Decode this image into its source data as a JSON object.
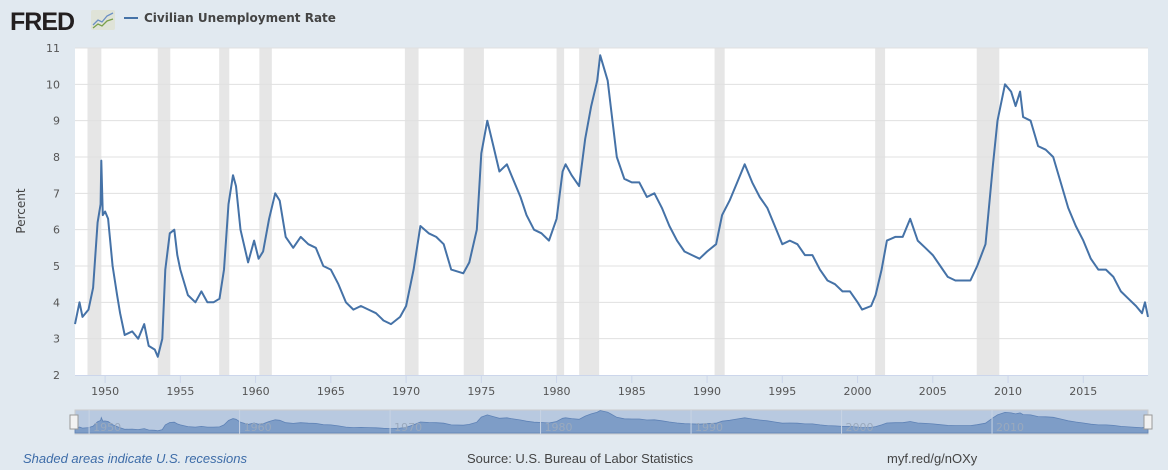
{
  "header": {
    "logo": "FRED",
    "series_name": "Civilian Unemployment Rate",
    "series_color": "#4572a7"
  },
  "footer": {
    "recession_note": "Shaded areas indicate U.S. recessions",
    "source": "Source: U.S. Bureau of Labor Statistics",
    "short_link": "myf.red/g/nOXy"
  },
  "chart_data": {
    "type": "line",
    "title": "",
    "xlabel": "",
    "ylabel": "Percent",
    "xlim": [
      1948.0,
      2019.3
    ],
    "ylim": [
      2,
      11
    ],
    "y_ticks": [
      2,
      3,
      4,
      5,
      6,
      7,
      8,
      9,
      10,
      11
    ],
    "x_ticks": [
      1950,
      1955,
      1960,
      1965,
      1970,
      1975,
      1980,
      1985,
      1990,
      1995,
      2000,
      2005,
      2010,
      2015
    ],
    "navigator_ticks": [
      1950,
      1960,
      1970,
      1980,
      1990,
      2000,
      2010
    ],
    "grid": true,
    "legend": "top-left",
    "line_color": "#4572a7",
    "recession_color": "#e6e6e6",
    "recessions": [
      [
        1948.83,
        1949.75
      ],
      [
        1953.5,
        1954.33
      ],
      [
        1957.58,
        1958.25
      ],
      [
        1960.25,
        1961.08
      ],
      [
        1969.92,
        1970.83
      ],
      [
        1973.83,
        1975.17
      ],
      [
        1980.0,
        1980.5
      ],
      [
        1981.5,
        1982.83
      ],
      [
        1990.5,
        1991.17
      ],
      [
        2001.17,
        2001.83
      ],
      [
        2007.92,
        2009.42
      ]
    ],
    "series": [
      {
        "name": "Civilian Unemployment Rate",
        "points": [
          [
            1948.0,
            3.4
          ],
          [
            1948.3,
            4.0
          ],
          [
            1948.5,
            3.6
          ],
          [
            1948.9,
            3.8
          ],
          [
            1949.2,
            4.4
          ],
          [
            1949.5,
            6.2
          ],
          [
            1949.7,
            6.7
          ],
          [
            1949.75,
            7.9
          ],
          [
            1949.85,
            6.4
          ],
          [
            1950.0,
            6.5
          ],
          [
            1950.2,
            6.3
          ],
          [
            1950.5,
            5.0
          ],
          [
            1950.8,
            4.2
          ],
          [
            1951.0,
            3.7
          ],
          [
            1951.3,
            3.1
          ],
          [
            1951.8,
            3.2
          ],
          [
            1952.2,
            3.0
          ],
          [
            1952.6,
            3.4
          ],
          [
            1952.9,
            2.8
          ],
          [
            1953.3,
            2.7
          ],
          [
            1953.5,
            2.5
          ],
          [
            1953.8,
            3.0
          ],
          [
            1954.0,
            4.9
          ],
          [
            1954.3,
            5.9
          ],
          [
            1954.6,
            6.0
          ],
          [
            1954.8,
            5.3
          ],
          [
            1955.0,
            4.9
          ],
          [
            1955.5,
            4.2
          ],
          [
            1956.0,
            4.0
          ],
          [
            1956.4,
            4.3
          ],
          [
            1956.8,
            4.0
          ],
          [
            1957.2,
            4.0
          ],
          [
            1957.6,
            4.1
          ],
          [
            1957.9,
            4.9
          ],
          [
            1958.2,
            6.7
          ],
          [
            1958.5,
            7.5
          ],
          [
            1958.7,
            7.2
          ],
          [
            1959.0,
            6.0
          ],
          [
            1959.5,
            5.1
          ],
          [
            1959.9,
            5.7
          ],
          [
            1960.2,
            5.2
          ],
          [
            1960.5,
            5.4
          ],
          [
            1960.9,
            6.3
          ],
          [
            1961.3,
            7.0
          ],
          [
            1961.6,
            6.8
          ],
          [
            1962.0,
            5.8
          ],
          [
            1962.5,
            5.5
          ],
          [
            1963.0,
            5.8
          ],
          [
            1963.5,
            5.6
          ],
          [
            1964.0,
            5.5
          ],
          [
            1964.5,
            5.0
          ],
          [
            1965.0,
            4.9
          ],
          [
            1965.5,
            4.5
          ],
          [
            1966.0,
            4.0
          ],
          [
            1966.5,
            3.8
          ],
          [
            1967.0,
            3.9
          ],
          [
            1967.5,
            3.8
          ],
          [
            1968.0,
            3.7
          ],
          [
            1968.5,
            3.5
          ],
          [
            1969.0,
            3.4
          ],
          [
            1969.6,
            3.6
          ],
          [
            1970.0,
            3.9
          ],
          [
            1970.5,
            4.9
          ],
          [
            1970.95,
            6.1
          ],
          [
            1971.5,
            5.9
          ],
          [
            1972.0,
            5.8
          ],
          [
            1972.5,
            5.6
          ],
          [
            1973.0,
            4.9
          ],
          [
            1973.8,
            4.8
          ],
          [
            1974.2,
            5.1
          ],
          [
            1974.7,
            6.0
          ],
          [
            1975.0,
            8.1
          ],
          [
            1975.4,
            9.0
          ],
          [
            1975.8,
            8.3
          ],
          [
            1976.2,
            7.6
          ],
          [
            1976.7,
            7.8
          ],
          [
            1977.0,
            7.5
          ],
          [
            1977.6,
            6.9
          ],
          [
            1978.0,
            6.4
          ],
          [
            1978.5,
            6.0
          ],
          [
            1979.0,
            5.9
          ],
          [
            1979.5,
            5.7
          ],
          [
            1980.0,
            6.3
          ],
          [
            1980.4,
            7.6
          ],
          [
            1980.6,
            7.8
          ],
          [
            1981.0,
            7.5
          ],
          [
            1981.5,
            7.2
          ],
          [
            1981.9,
            8.5
          ],
          [
            1982.3,
            9.4
          ],
          [
            1982.7,
            10.1
          ],
          [
            1982.9,
            10.8
          ],
          [
            1983.4,
            10.1
          ],
          [
            1983.6,
            9.4
          ],
          [
            1984.0,
            8.0
          ],
          [
            1984.5,
            7.4
          ],
          [
            1985.0,
            7.3
          ],
          [
            1985.5,
            7.3
          ],
          [
            1986.0,
            6.9
          ],
          [
            1986.5,
            7.0
          ],
          [
            1987.0,
            6.6
          ],
          [
            1987.5,
            6.1
          ],
          [
            1988.0,
            5.7
          ],
          [
            1988.5,
            5.4
          ],
          [
            1989.0,
            5.3
          ],
          [
            1989.5,
            5.2
          ],
          [
            1990.0,
            5.4
          ],
          [
            1990.6,
            5.6
          ],
          [
            1991.0,
            6.4
          ],
          [
            1991.5,
            6.8
          ],
          [
            1992.0,
            7.3
          ],
          [
            1992.5,
            7.8
          ],
          [
            1993.0,
            7.3
          ],
          [
            1993.5,
            6.9
          ],
          [
            1994.0,
            6.6
          ],
          [
            1994.5,
            6.1
          ],
          [
            1995.0,
            5.6
          ],
          [
            1995.5,
            5.7
          ],
          [
            1996.0,
            5.6
          ],
          [
            1996.5,
            5.3
          ],
          [
            1997.0,
            5.3
          ],
          [
            1997.5,
            4.9
          ],
          [
            1998.0,
            4.6
          ],
          [
            1998.5,
            4.5
          ],
          [
            1999.0,
            4.3
          ],
          [
            1999.5,
            4.3
          ],
          [
            2000.0,
            4.0
          ],
          [
            2000.3,
            3.8
          ],
          [
            2000.9,
            3.9
          ],
          [
            2001.2,
            4.2
          ],
          [
            2001.6,
            4.9
          ],
          [
            2001.95,
            5.7
          ],
          [
            2002.5,
            5.8
          ],
          [
            2003.0,
            5.8
          ],
          [
            2003.5,
            6.3
          ],
          [
            2004.0,
            5.7
          ],
          [
            2004.5,
            5.5
          ],
          [
            2005.0,
            5.3
          ],
          [
            2005.5,
            5.0
          ],
          [
            2006.0,
            4.7
          ],
          [
            2006.5,
            4.6
          ],
          [
            2007.0,
            4.6
          ],
          [
            2007.5,
            4.6
          ],
          [
            2007.95,
            5.0
          ],
          [
            2008.5,
            5.6
          ],
          [
            2009.0,
            7.8
          ],
          [
            2009.3,
            9.0
          ],
          [
            2009.8,
            10.0
          ],
          [
            2010.2,
            9.8
          ],
          [
            2010.5,
            9.4
          ],
          [
            2010.8,
            9.8
          ],
          [
            2011.0,
            9.1
          ],
          [
            2011.5,
            9.0
          ],
          [
            2012.0,
            8.3
          ],
          [
            2012.5,
            8.2
          ],
          [
            2013.0,
            8.0
          ],
          [
            2013.5,
            7.3
          ],
          [
            2014.0,
            6.6
          ],
          [
            2014.5,
            6.1
          ],
          [
            2015.0,
            5.7
          ],
          [
            2015.5,
            5.2
          ],
          [
            2016.0,
            4.9
          ],
          [
            2016.5,
            4.9
          ],
          [
            2017.0,
            4.7
          ],
          [
            2017.5,
            4.3
          ],
          [
            2018.0,
            4.1
          ],
          [
            2018.5,
            3.9
          ],
          [
            2018.9,
            3.7
          ],
          [
            2019.1,
            4.0
          ],
          [
            2019.3,
            3.6
          ]
        ]
      }
    ]
  }
}
